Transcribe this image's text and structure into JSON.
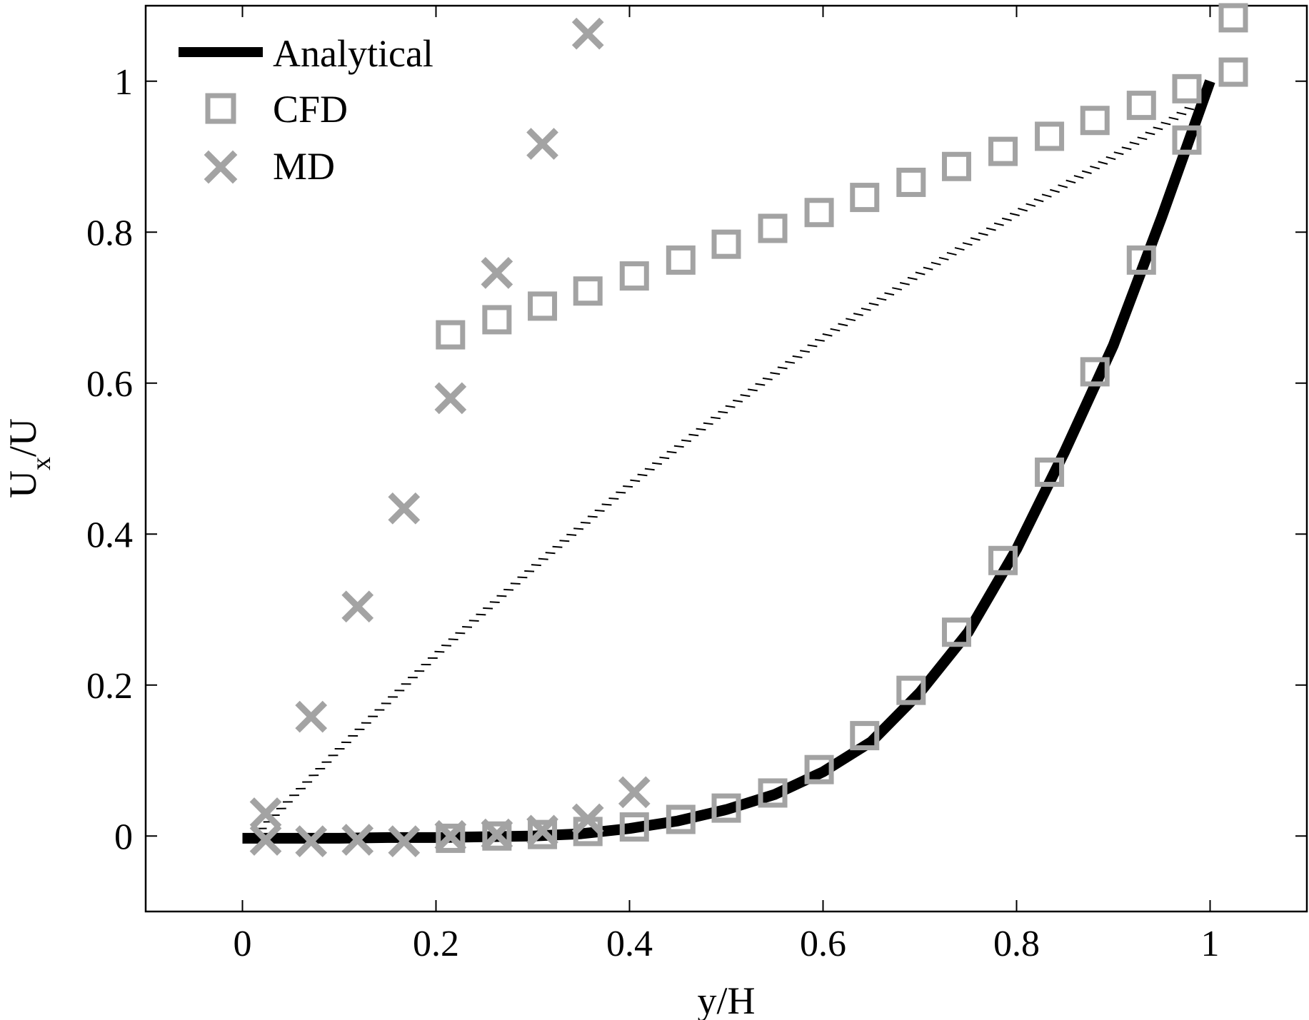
{
  "chart_data": {
    "type": "line",
    "title": "",
    "xlabel": "y/H",
    "ylabel": {
      "main": "U",
      "sub": "x",
      "rest": "/U"
    },
    "xlim": [
      -0.1,
      1.1
    ],
    "ylim": [
      -0.1,
      1.1
    ],
    "xticks": [
      "0",
      "0.2",
      "0.4",
      "0.6",
      "0.8",
      "1"
    ],
    "yticks": [
      "0",
      "0.2",
      "0.4",
      "0.6",
      "0.8",
      "1"
    ],
    "grid": false,
    "legend_position": "top-left",
    "series": [
      {
        "name": "Analytical",
        "style": "thick-solid-line",
        "color": "#000000",
        "x": [
          0,
          0.05,
          0.1,
          0.15,
          0.2,
          0.25,
          0.3,
          0.35,
          0.4,
          0.45,
          0.5,
          0.55,
          0.6,
          0.65,
          0.7,
          0.75,
          0.8,
          0.85,
          0.9,
          0.95,
          1.0
        ],
        "y": [
          -0.003,
          -0.003,
          -0.003,
          -0.002,
          -0.002,
          -0.001,
          0.0,
          0.003,
          0.01,
          0.02,
          0.035,
          0.055,
          0.085,
          0.125,
          0.19,
          0.27,
          0.38,
          0.51,
          0.65,
          0.82,
          1.0
        ]
      },
      {
        "name": "",
        "style": "hatched-line",
        "color": "#000000",
        "x": [
          0.02,
          0.1,
          0.2,
          0.3,
          0.4,
          0.5,
          0.6,
          0.7,
          0.8,
          0.9,
          0.98
        ],
        "y": [
          0.01,
          0.115,
          0.24,
          0.355,
          0.465,
          0.565,
          0.66,
          0.745,
          0.825,
          0.9,
          0.965
        ]
      },
      {
        "name": "CFD",
        "marker": "square",
        "color": "#a3a3a3",
        "x": [
          0.215,
          0.263,
          0.31,
          0.357,
          0.405,
          0.453,
          0.5,
          0.548,
          0.596,
          0.643,
          0.691,
          0.738,
          0.786,
          0.834,
          0.881,
          0.929,
          0.976,
          1.024,
          1.024
        ],
        "y": [
          0.664,
          0.684,
          0.702,
          0.722,
          0.742,
          0.763,
          0.784,
          0.805,
          0.826,
          0.846,
          0.866,
          0.887,
          0.907,
          0.927,
          0.948,
          0.968,
          0.99,
          1.012,
          1.084
        ]
      },
      {
        "name": "",
        "marker": "square",
        "color": "#a3a3a3",
        "x": [
          0.215,
          0.263,
          0.31,
          0.357,
          0.405,
          0.453,
          0.5,
          0.548,
          0.596,
          0.643,
          0.691,
          0.738,
          0.786,
          0.834,
          0.881,
          0.929,
          0.976
        ],
        "y": [
          -0.003,
          0.0,
          0.002,
          0.006,
          0.012,
          0.022,
          0.037,
          0.057,
          0.088,
          0.133,
          0.193,
          0.27,
          0.365,
          0.482,
          0.615,
          0.763,
          0.922
        ]
      },
      {
        "name": "MD",
        "marker": "x",
        "color": "#a3a3a3",
        "x": [
          0.024,
          0.071,
          0.119,
          0.167,
          0.215,
          0.263,
          0.31,
          0.357
        ],
        "y": [
          0.03,
          0.158,
          0.304,
          0.434,
          0.58,
          0.746,
          0.917,
          1.063
        ]
      },
      {
        "name": "",
        "marker": "x",
        "color": "#a3a3a3",
        "x": [
          0.024,
          0.071,
          0.119,
          0.167,
          0.215,
          0.263,
          0.31,
          0.357,
          0.405
        ],
        "y": [
          -0.005,
          -0.007,
          -0.005,
          -0.007,
          0.0,
          0.002,
          0.007,
          0.022,
          0.058
        ]
      }
    ]
  }
}
